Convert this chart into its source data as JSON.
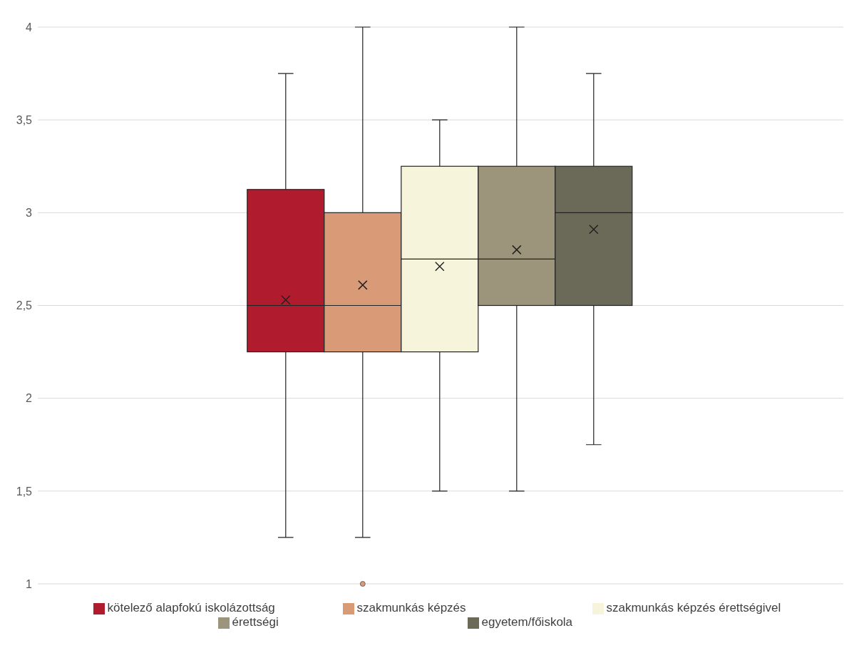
{
  "chart_data": {
    "type": "box",
    "categories": [
      null
    ],
    "ylim": [
      1,
      4
    ],
    "yticks": [
      1,
      {
        "value": 1.5,
        "label": "1,5"
      },
      2,
      {
        "value": 2.5,
        "label": "2,5"
      },
      3,
      {
        "value": 3.5,
        "label": "3,5"
      },
      4
    ],
    "grid": "y",
    "legend": "bottom",
    "tick_labels": "y",
    "marker": "cross",
    "series": [
      {
        "name": "kötelező alapfokú iskolázottság",
        "color": "#b01c2e",
        "boxes": [
          {
            "low": 1.25,
            "q1": 2.25,
            "median": 2.5,
            "q3": 3.125,
            "high": 3.75,
            "mean": 2.53
          }
        ]
      },
      {
        "name": "szakmunkás képzés",
        "color": "#d99a78",
        "boxes": [
          {
            "low": 1.25,
            "q1": 2.25,
            "median": 2.5,
            "q3": 3,
            "high": 4,
            "mean": 2.61,
            "outliers": [
              1
            ]
          }
        ]
      },
      {
        "name": "szakmunkás képzés érettségivel",
        "color": "#f7f4dc",
        "boxes": [
          {
            "low": 1.5,
            "q1": 2.25,
            "median": 2.75,
            "q3": 3.25,
            "high": 3.5,
            "mean": 2.71
          }
        ]
      },
      {
        "name": "érettségi",
        "color": "#9c957c",
        "boxes": [
          {
            "low": 1.5,
            "q1": 2.5,
            "median": 2.75,
            "q3": 3.25,
            "high": 4,
            "mean": 2.8
          }
        ]
      },
      {
        "name": "egyetem/főiskola",
        "color": "#6b6a58",
        "boxes": [
          {
            "low": 1.75,
            "q1": 2.5,
            "median": 3,
            "q3": 3.25,
            "high": 3.75,
            "mean": 2.91
          }
        ]
      }
    ]
  }
}
